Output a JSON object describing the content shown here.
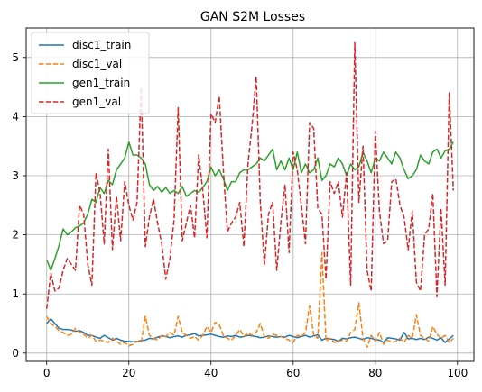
{
  "chart_data": {
    "type": "line",
    "title": "GAN S2M Losses",
    "xlabel": "",
    "ylabel": "",
    "xlim": [
      -5,
      104
    ],
    "ylim": [
      -0.14,
      5.5
    ],
    "xticks": [
      0,
      20,
      40,
      60,
      80,
      100
    ],
    "yticks": [
      0,
      1,
      2,
      3,
      4,
      5
    ],
    "grid": true,
    "legend": "top-left",
    "x": [
      0,
      1,
      2,
      3,
      4,
      5,
      6,
      7,
      8,
      9,
      10,
      11,
      12,
      13,
      14,
      15,
      16,
      17,
      18,
      19,
      20,
      21,
      22,
      23,
      24,
      25,
      26,
      27,
      28,
      29,
      30,
      31,
      32,
      33,
      34,
      35,
      36,
      37,
      38,
      39,
      40,
      41,
      42,
      43,
      44,
      45,
      46,
      47,
      48,
      49,
      50,
      51,
      52,
      53,
      54,
      55,
      56,
      57,
      58,
      59,
      60,
      61,
      62,
      63,
      64,
      65,
      66,
      67,
      68,
      69,
      70,
      71,
      72,
      73,
      74,
      75,
      76,
      77,
      78,
      79,
      80,
      81,
      82,
      83,
      84,
      85,
      86,
      87,
      88,
      89,
      90,
      91,
      92,
      93,
      94,
      95,
      96,
      97,
      98,
      99
    ],
    "series": [
      {
        "name": "disc1_train",
        "color": "#1f77b4",
        "dash": "solid",
        "values": [
          0.5,
          0.58,
          0.5,
          0.42,
          0.4,
          0.4,
          0.39,
          0.37,
          0.38,
          0.35,
          0.3,
          0.3,
          0.27,
          0.25,
          0.3,
          0.26,
          0.22,
          0.25,
          0.22,
          0.2,
          0.2,
          0.19,
          0.2,
          0.21,
          0.22,
          0.25,
          0.24,
          0.27,
          0.29,
          0.28,
          0.26,
          0.28,
          0.29,
          0.27,
          0.3,
          0.31,
          0.33,
          0.29,
          0.3,
          0.31,
          0.32,
          0.3,
          0.28,
          0.27,
          0.29,
          0.28,
          0.3,
          0.27,
          0.28,
          0.3,
          0.29,
          0.28,
          0.26,
          0.27,
          0.29,
          0.28,
          0.27,
          0.28,
          0.27,
          0.3,
          0.28,
          0.26,
          0.28,
          0.3,
          0.27,
          0.29,
          0.31,
          0.22,
          0.25,
          0.24,
          0.23,
          0.2,
          0.25,
          0.24,
          0.26,
          0.27,
          0.25,
          0.23,
          0.26,
          0.25,
          0.23,
          0.22,
          0.18,
          0.26,
          0.25,
          0.24,
          0.22,
          0.35,
          0.24,
          0.25,
          0.23,
          0.25,
          0.23,
          0.27,
          0.25,
          0.22,
          0.26,
          0.18,
          0.24,
          0.3
        ]
      },
      {
        "name": "disc1_val",
        "color": "#ff7f0e",
        "dash": "dashed",
        "values": [
          0.62,
          0.5,
          0.45,
          0.38,
          0.35,
          0.3,
          0.32,
          0.42,
          0.35,
          0.32,
          0.25,
          0.3,
          0.2,
          0.22,
          0.2,
          0.18,
          0.25,
          0.2,
          0.15,
          0.18,
          0.12,
          0.15,
          0.2,
          0.18,
          0.62,
          0.3,
          0.25,
          0.22,
          0.3,
          0.28,
          0.35,
          0.3,
          0.62,
          0.35,
          0.3,
          0.25,
          0.28,
          0.22,
          0.3,
          0.45,
          0.35,
          0.52,
          0.48,
          0.3,
          0.25,
          0.22,
          0.3,
          0.4,
          0.28,
          0.35,
          0.3,
          0.35,
          0.5,
          0.28,
          0.25,
          0.32,
          0.3,
          0.28,
          0.25,
          0.22,
          0.18,
          0.3,
          0.28,
          0.35,
          0.8,
          0.3,
          0.25,
          1.7,
          0.2,
          0.25,
          0.18,
          0.2,
          0.22,
          0.2,
          0.35,
          0.4,
          0.85,
          0.25,
          0.1,
          0.3,
          0.2,
          0.35,
          0.15,
          0.22,
          0.18,
          0.2,
          0.25,
          0.18,
          0.3,
          0.25,
          0.65,
          0.3,
          0.25,
          0.2,
          0.45,
          0.32,
          0.25,
          0.3,
          0.18,
          0.25
        ]
      },
      {
        "name": "gen1_train",
        "color": "#2ca02c",
        "dash": "solid",
        "values": [
          1.58,
          1.4,
          1.6,
          1.82,
          2.1,
          2.0,
          2.05,
          2.12,
          2.15,
          2.2,
          2.35,
          2.6,
          2.55,
          2.8,
          2.7,
          2.92,
          2.85,
          3.1,
          3.2,
          3.3,
          3.57,
          3.35,
          3.35,
          3.3,
          3.2,
          2.85,
          2.75,
          2.82,
          2.72,
          2.8,
          2.7,
          2.75,
          2.7,
          2.82,
          2.65,
          2.7,
          2.75,
          2.72,
          2.8,
          2.9,
          3.15,
          3.0,
          3.1,
          2.95,
          2.75,
          2.9,
          2.9,
          3.05,
          3.1,
          3.1,
          3.15,
          3.2,
          3.3,
          3.25,
          3.35,
          3.45,
          3.1,
          3.25,
          3.1,
          3.3,
          3.1,
          3.4,
          3.05,
          3.2,
          3.05,
          3.1,
          3.3,
          2.92,
          3.0,
          3.2,
          3.15,
          3.3,
          3.2,
          3.0,
          3.2,
          3.1,
          3.15,
          3.4,
          3.25,
          3.05,
          3.3,
          3.25,
          3.4,
          3.3,
          3.2,
          3.4,
          3.3,
          3.1,
          2.95,
          3.0,
          3.1,
          3.35,
          3.25,
          3.2,
          3.4,
          3.45,
          3.3,
          3.42,
          3.45,
          3.57
        ]
      },
      {
        "name": "gen1_val",
        "color": "#d62728",
        "dash": "dashed",
        "values": [
          0.75,
          1.35,
          1.05,
          1.1,
          1.4,
          1.6,
          1.5,
          1.4,
          2.5,
          2.35,
          1.5,
          1.15,
          3.05,
          2.7,
          1.85,
          3.45,
          1.75,
          2.65,
          1.9,
          2.9,
          2.5,
          2.25,
          2.55,
          4.5,
          1.8,
          2.3,
          2.6,
          2.2,
          1.85,
          1.25,
          1.6,
          2.25,
          4.15,
          1.9,
          2.2,
          2.5,
          1.95,
          3.35,
          2.75,
          1.95,
          4.05,
          3.9,
          4.35,
          3.1,
          2.05,
          2.2,
          2.3,
          2.55,
          1.8,
          3.2,
          3.85,
          4.68,
          2.55,
          1.5,
          2.35,
          2.55,
          1.4,
          2.2,
          2.85,
          1.7,
          3.4,
          3.1,
          2.5,
          1.85,
          3.9,
          3.8,
          2.45,
          2.35,
          1.25,
          2.9,
          2.7,
          2.9,
          2.3,
          3.05,
          1.15,
          5.25,
          2.55,
          3.5,
          1.4,
          1.05,
          3.75,
          2.4,
          1.85,
          1.9,
          2.9,
          2.95,
          2.5,
          2.3,
          1.75,
          2.4,
          1.2,
          1.05,
          2.0,
          2.1,
          2.7,
          0.95,
          2.45,
          1.15,
          4.4,
          2.75
        ]
      }
    ]
  }
}
